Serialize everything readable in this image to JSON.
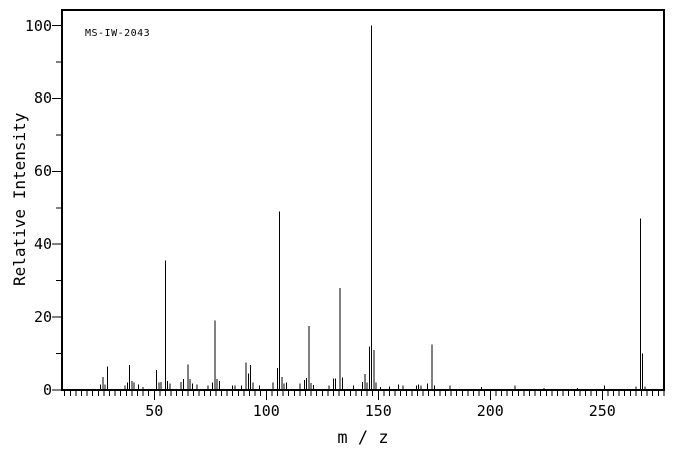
{
  "figure": {
    "annotation": "MS-IW-2043",
    "background_color": "#ffffff",
    "line_color": "#000000"
  },
  "chart_data": {
    "type": "bar",
    "subtype": "mass-spectrum-stick-plot",
    "title": "MS-IW-2043",
    "xlabel": "m / z",
    "ylabel": "Relative Intensity",
    "xlim": [
      9,
      277.5
    ],
    "ylim": [
      0,
      100
    ],
    "x_major_ticks": [
      50,
      100,
      150,
      200,
      250
    ],
    "x_minor_tick_step": 2.5,
    "y_major_ticks": [
      0,
      20,
      40,
      60,
      80,
      100
    ],
    "y_minor_tick_step": 10,
    "grid": false,
    "legend": false,
    "base_peak": {
      "mz": 147,
      "intensity": 100
    },
    "peaks": [
      [
        26,
        1.5
      ],
      [
        27,
        3.5
      ],
      [
        28,
        1.5
      ],
      [
        29,
        6.5
      ],
      [
        37,
        1.2
      ],
      [
        38,
        2
      ],
      [
        39,
        6.8
      ],
      [
        40,
        2.5
      ],
      [
        41,
        2
      ],
      [
        43,
        1.5
      ],
      [
        45,
        0.8
      ],
      [
        51,
        5.5
      ],
      [
        52,
        2
      ],
      [
        53,
        2.2
      ],
      [
        55,
        35.5
      ],
      [
        56,
        2.5
      ],
      [
        57,
        1.8
      ],
      [
        62,
        2.2
      ],
      [
        63,
        3
      ],
      [
        65,
        7
      ],
      [
        66,
        3
      ],
      [
        67,
        1.8
      ],
      [
        69,
        1.5
      ],
      [
        74,
        1.2
      ],
      [
        76,
        2
      ],
      [
        77,
        19
      ],
      [
        78,
        3
      ],
      [
        79,
        2.5
      ],
      [
        85,
        1.2
      ],
      [
        86,
        1.2
      ],
      [
        89,
        1.3
      ],
      [
        91,
        7.5
      ],
      [
        92,
        4.5
      ],
      [
        93,
        6.8
      ],
      [
        94,
        2
      ],
      [
        97,
        1.3
      ],
      [
        103,
        2
      ],
      [
        105,
        6
      ],
      [
        106,
        49
      ],
      [
        107,
        3.5
      ],
      [
        108,
        1.8
      ],
      [
        109,
        2
      ],
      [
        115,
        1.8
      ],
      [
        117,
        2.7
      ],
      [
        118,
        3.3
      ],
      [
        119,
        17.5
      ],
      [
        120,
        1.9
      ],
      [
        121,
        1.4
      ],
      [
        128,
        1.2
      ],
      [
        130,
        3.2
      ],
      [
        131,
        3.2
      ],
      [
        133,
        28
      ],
      [
        134,
        3.4
      ],
      [
        139,
        1.2
      ],
      [
        143,
        2.2
      ],
      [
        144,
        4.4
      ],
      [
        145,
        2
      ],
      [
        146,
        12
      ],
      [
        147,
        100
      ],
      [
        148,
        11
      ],
      [
        149,
        2
      ],
      [
        151,
        0.8
      ],
      [
        155,
        1
      ],
      [
        159,
        1.5
      ],
      [
        161,
        1.2
      ],
      [
        167,
        1.3
      ],
      [
        168,
        1.5
      ],
      [
        169,
        1.3
      ],
      [
        172,
        1.8
      ],
      [
        174,
        12.5
      ],
      [
        175,
        1.2
      ],
      [
        182,
        1.2
      ],
      [
        196,
        0.8
      ],
      [
        211,
        1.3
      ],
      [
        224,
        0.6
      ],
      [
        239,
        0.6
      ],
      [
        251,
        1.3
      ],
      [
        265,
        1
      ],
      [
        267,
        47
      ],
      [
        268,
        10
      ],
      [
        269,
        1
      ]
    ]
  }
}
